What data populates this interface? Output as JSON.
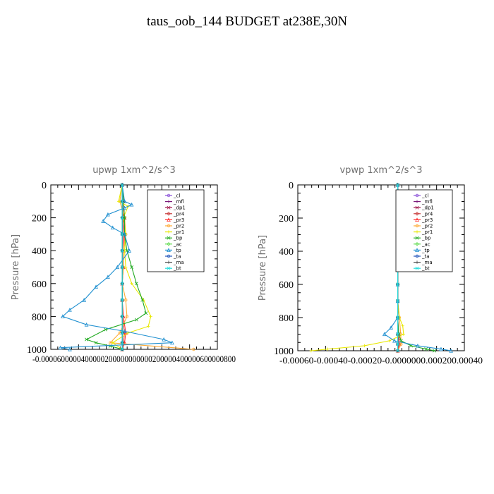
{
  "page": {
    "title": "taus_oob_144  BUDGET at238E,30N"
  },
  "chart_data": [
    {
      "type": "line",
      "title": "upwp   1xm^2/s^3",
      "ylabel": "Pressure [hPa]",
      "xlabel": "",
      "ylim": [
        1000,
        0
      ],
      "yticks": [
        "0",
        "200",
        "400",
        "600",
        "800",
        "1000"
      ],
      "xlim": [
        -6e-05,
        8e-05
      ],
      "xtick_text": "-0.0000600000400000200000000000200000400000600000800",
      "legend_position": "top-right",
      "series": [
        {
          "name": "_cl",
          "color": "#8a4fd8",
          "y": [
            0,
            100,
            200,
            300,
            400,
            500,
            600,
            700,
            800,
            900,
            960,
            1000
          ],
          "x": [
            0,
            0,
            0,
            0,
            0,
            0,
            0,
            0,
            0,
            0,
            0,
            0
          ]
        },
        {
          "name": "_mfl",
          "color": "#7a1a7a",
          "y": [
            0,
            100,
            200,
            300,
            400,
            500,
            600,
            700,
            800,
            900,
            960,
            1000
          ],
          "x": [
            0,
            0,
            0,
            0,
            0,
            0,
            0,
            0,
            0,
            0,
            0,
            0
          ]
        },
        {
          "name": "_dp1",
          "color": "#a0164a",
          "y": [
            0,
            100,
            200,
            300,
            400,
            500,
            600,
            700,
            800,
            900,
            960,
            1000
          ],
          "x": [
            0,
            0,
            1e-06,
            0,
            0,
            0,
            0,
            0,
            0,
            0,
            0,
            0
          ]
        },
        {
          "name": "_pr4",
          "color": "#c83c3c",
          "y": [
            0,
            100,
            200,
            300,
            400,
            500,
            600,
            700,
            800,
            900,
            960,
            1000
          ],
          "x": [
            0,
            1e-06,
            2e-06,
            1e-06,
            0,
            0,
            0,
            0,
            0,
            2e-06,
            1e-06,
            0
          ]
        },
        {
          "name": "_pr3",
          "color": "#ff3333",
          "y": [
            0,
            100,
            200,
            300,
            400,
            500,
            600,
            700,
            800,
            900,
            960,
            1000
          ],
          "x": [
            0,
            1e-06,
            2e-06,
            2e-06,
            1e-06,
            1e-06,
            0,
            0,
            1e-06,
            3e-06,
            2e-06,
            0
          ]
        },
        {
          "name": "_pr2",
          "color": "#ffaa33",
          "y": [
            0,
            100,
            200,
            300,
            400,
            500,
            600,
            700,
            800,
            900,
            960,
            1000
          ],
          "x": [
            0,
            -2e-06,
            2e-06,
            3e-06,
            1e-06,
            1e-06,
            0,
            3e-06,
            4e-06,
            -2e-06,
            -1e-05,
            6e-05
          ]
        },
        {
          "name": "_pr1",
          "color": "#e8e800",
          "y": [
            0,
            100,
            130,
            200,
            300,
            400,
            500,
            600,
            700,
            800,
            860,
            900,
            960,
            1000
          ],
          "x": [
            0,
            -3e-06,
            5e-06,
            1e-06,
            3e-06,
            2e-06,
            3e-06,
            8e-06,
            1.8e-05,
            2.4e-05,
            2.2e-05,
            5e-06,
            -8e-06,
            0
          ]
        },
        {
          "name": "_bp",
          "color": "#22aa22",
          "y": [
            0,
            100,
            200,
            300,
            400,
            500,
            600,
            700,
            780,
            820,
            880,
            940,
            960,
            980,
            1000
          ],
          "x": [
            0,
            1e-06,
            2e-06,
            2e-06,
            4e-06,
            8e-06,
            1.2e-05,
            1.7e-05,
            2e-05,
            1.2e-05,
            -1.4e-05,
            -3e-05,
            -2.2e-05,
            -1e-05,
            0
          ]
        },
        {
          "name": "_ac",
          "color": "#66dd55",
          "y": [
            0,
            100,
            200,
            300,
            400,
            500,
            600,
            700,
            800,
            900,
            960,
            1000
          ],
          "x": [
            0,
            0,
            0,
            0,
            0,
            0,
            0,
            0,
            0,
            0,
            0,
            0
          ]
        },
        {
          "name": "_tp",
          "color": "#2090d0",
          "y": [
            0,
            100,
            120,
            140,
            180,
            220,
            260,
            300,
            400,
            500,
            560,
            620,
            700,
            760,
            800,
            850,
            890,
            940,
            960,
            990,
            1000
          ],
          "x": [
            0,
            2e-06,
            8e-06,
            2e-06,
            -1.2e-05,
            -1.6e-05,
            -8e-06,
            2e-06,
            6e-06,
            -4e-06,
            -1.2e-05,
            -2.2e-05,
            -3.2e-05,
            -4.4e-05,
            -5e-05,
            -3e-05,
            2e-06,
            3.5e-05,
            4.2e-05,
            -5.2e-05,
            -4.4e-05
          ]
        },
        {
          "name": "_ta",
          "color": "#2255bb",
          "y": [
            0,
            100,
            200,
            300,
            400,
            500,
            600,
            700,
            800,
            900,
            960,
            1000
          ],
          "x": [
            0,
            0,
            0,
            0,
            0,
            0,
            0,
            0,
            0,
            0,
            0,
            0
          ]
        },
        {
          "name": "_ma",
          "color": "#444444",
          "y": [
            0,
            100,
            200,
            300,
            400,
            500,
            600,
            700,
            800,
            900,
            960,
            1000
          ],
          "x": [
            0,
            0,
            0,
            0,
            0,
            0,
            0,
            0,
            0,
            0,
            0,
            0
          ]
        },
        {
          "name": "_bt",
          "color": "#22dddd",
          "y": [
            0,
            100,
            200,
            300,
            400,
            500,
            600,
            700,
            800,
            900,
            960,
            1000
          ],
          "x": [
            0,
            0,
            0,
            0,
            0,
            0,
            0,
            0,
            0,
            0,
            0,
            0
          ]
        }
      ]
    },
    {
      "type": "line",
      "title": "vpwp   1xm^2/s^3",
      "ylabel": "Pressure [hPa]",
      "xlabel": "",
      "ylim": [
        1000,
        0
      ],
      "yticks": [
        "0",
        "200",
        "400",
        "600",
        "800",
        "1000"
      ],
      "xlim": [
        -0.0006,
        0.0004
      ],
      "xtick_text": "-0.00060-0.00040-0.00020-0.0000000.000200.00040",
      "legend_position": "top-right",
      "series": [
        {
          "name": "_cl",
          "color": "#8a4fd8",
          "y": [
            0,
            100,
            200,
            300,
            400,
            500,
            600,
            700,
            800,
            900,
            960,
            1000
          ],
          "x": [
            0,
            0,
            0,
            0,
            0,
            0,
            0,
            0,
            0,
            0,
            0,
            0
          ]
        },
        {
          "name": "_mfl",
          "color": "#7a1a7a",
          "y": [
            0,
            100,
            200,
            300,
            400,
            500,
            600,
            700,
            800,
            900,
            960,
            1000
          ],
          "x": [
            0,
            0,
            0,
            0,
            0,
            0,
            0,
            0,
            0,
            0,
            0,
            0
          ]
        },
        {
          "name": "_dp1",
          "color": "#a0164a",
          "y": [
            0,
            100,
            200,
            300,
            400,
            500,
            600,
            700,
            800,
            900,
            960,
            1000
          ],
          "x": [
            0,
            0,
            0,
            0,
            0,
            0,
            0,
            0,
            0,
            0,
            0,
            0
          ]
        },
        {
          "name": "_pr4",
          "color": "#c83c3c",
          "y": [
            0,
            100,
            200,
            300,
            400,
            500,
            600,
            700,
            800,
            900,
            960,
            1000
          ],
          "x": [
            0,
            0,
            0,
            0,
            0,
            0,
            0,
            0,
            0,
            4e-06,
            8e-06,
            0
          ]
        },
        {
          "name": "_pr3",
          "color": "#ff3333",
          "y": [
            0,
            100,
            200,
            300,
            400,
            500,
            600,
            700,
            800,
            900,
            960,
            1000
          ],
          "x": [
            0,
            0,
            0,
            0,
            0,
            0,
            0,
            0,
            0,
            6e-06,
            1e-05,
            0
          ]
        },
        {
          "name": "_pr2",
          "color": "#ffaa33",
          "y": [
            0,
            100,
            200,
            300,
            400,
            500,
            600,
            700,
            800,
            900,
            960,
            1000
          ],
          "x": [
            0,
            0,
            0,
            0,
            0,
            0,
            0,
            0,
            1e-05,
            1.8e-05,
            2e-05,
            0
          ]
        },
        {
          "name": "_pr1",
          "color": "#e8e800",
          "y": [
            0,
            100,
            200,
            300,
            400,
            500,
            600,
            700,
            800,
            850,
            900,
            940,
            970,
            990,
            1000
          ],
          "x": [
            0,
            0,
            0,
            0,
            0,
            0,
            0,
            0,
            1e-05,
            3e-05,
            3.5e-05,
            -5e-05,
            -0.0002,
            -0.00042,
            -0.00052
          ]
        },
        {
          "name": "_bp",
          "color": "#22aa22",
          "y": [
            0,
            100,
            200,
            300,
            400,
            500,
            600,
            700,
            800,
            900,
            940,
            970,
            990,
            1000
          ],
          "x": [
            0,
            0,
            0,
            0,
            0,
            0,
            0,
            0,
            0,
            6e-06,
            2e-05,
            8e-05,
            0.00017,
            0.00022
          ]
        },
        {
          "name": "_ac",
          "color": "#66dd55",
          "y": [
            0,
            100,
            200,
            300,
            400,
            500,
            600,
            700,
            800,
            900,
            960,
            1000
          ],
          "x": [
            0,
            0,
            0,
            0,
            0,
            0,
            0,
            0,
            0,
            0,
            0,
            0
          ]
        },
        {
          "name": "_tp",
          "color": "#2090d0",
          "y": [
            0,
            100,
            150,
            170,
            200,
            300,
            400,
            500,
            600,
            700,
            800,
            860,
            900,
            940,
            970,
            990,
            1000
          ],
          "x": [
            0,
            4e-06,
            2e-05,
            6e-06,
            0,
            0,
            0,
            0,
            0,
            0,
            0,
            -4e-05,
            -8e-05,
            -2e-05,
            0.00012,
            0.00026,
            0.00032
          ]
        },
        {
          "name": "_ta",
          "color": "#2255bb",
          "y": [
            0,
            100,
            200,
            300,
            400,
            500,
            600,
            700,
            800,
            900,
            960,
            1000
          ],
          "x": [
            0,
            0,
            0,
            0,
            0,
            0,
            0,
            0,
            0,
            0,
            0,
            0
          ]
        },
        {
          "name": "_ma",
          "color": "#444444",
          "y": [
            0,
            100,
            200,
            300,
            400,
            500,
            600,
            700,
            800,
            900,
            960,
            1000
          ],
          "x": [
            0,
            0,
            0,
            0,
            0,
            0,
            0,
            0,
            0,
            0,
            0,
            0
          ]
        },
        {
          "name": "_bt",
          "color": "#22dddd",
          "y": [
            0,
            100,
            200,
            300,
            400,
            500,
            600,
            700,
            800,
            900,
            960,
            1000
          ],
          "x": [
            0,
            0,
            0,
            0,
            0,
            0,
            0,
            0,
            0,
            0,
            0,
            0
          ]
        }
      ]
    }
  ]
}
